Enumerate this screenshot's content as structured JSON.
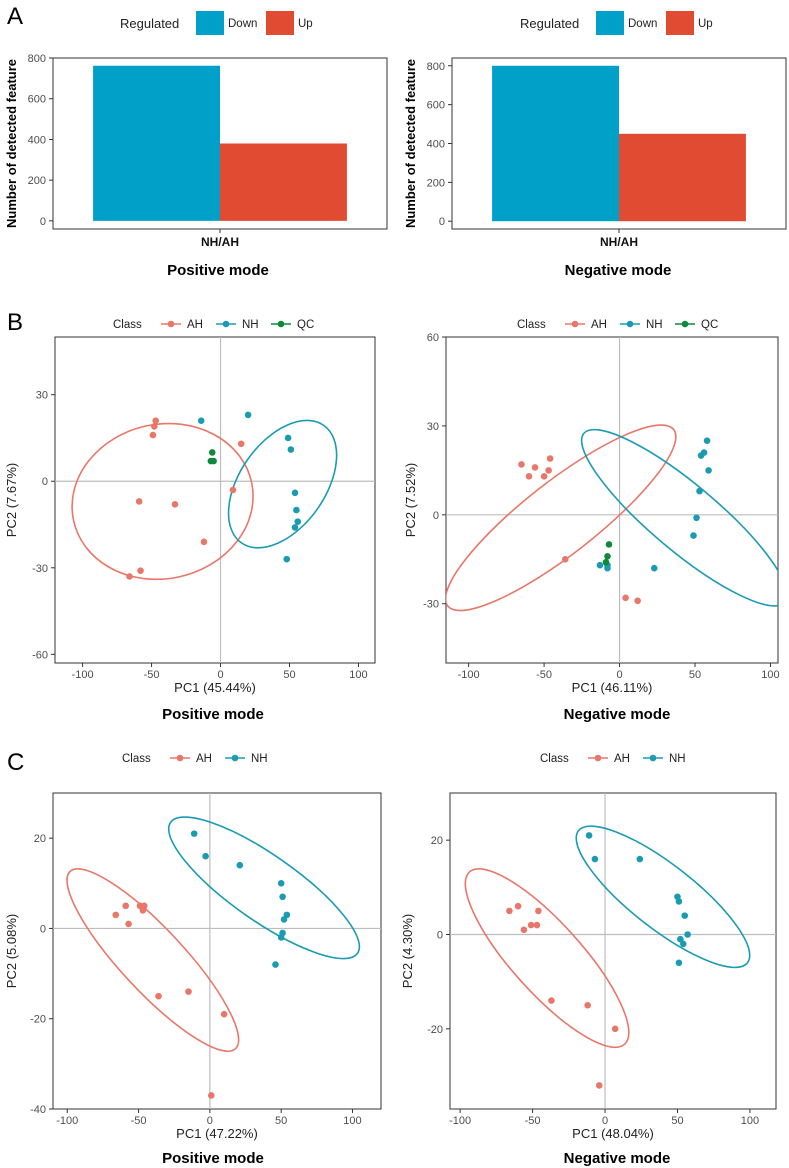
{
  "colors": {
    "down": "#00A0C8",
    "up": "#E04B32",
    "ah": "#E8776A",
    "nh": "#1A9BB2",
    "qc": "#0E8A3A"
  },
  "panel_labels": [
    "A",
    "B",
    "C"
  ],
  "chart_data": [
    {
      "id": "A1",
      "type": "bar",
      "panel": "A",
      "subtitle": "Positive mode",
      "legend_title": "Regulated",
      "categories": [
        "NH/AH"
      ],
      "series": [
        {
          "name": "Down",
          "values": [
            762
          ]
        },
        {
          "name": "Up",
          "values": [
            380
          ]
        }
      ],
      "xlabel": "NH/AH",
      "ylabel": "Number of detected feature",
      "ylim": [
        -40,
        800
      ],
      "yticks": [
        0,
        200,
        400,
        600,
        800
      ],
      "grid": false
    },
    {
      "id": "A2",
      "type": "bar",
      "panel": "A",
      "subtitle": "Negative mode",
      "legend_title": "Regulated",
      "categories": [
        "NH/AH"
      ],
      "series": [
        {
          "name": "Down",
          "values": [
            800
          ]
        },
        {
          "name": "Up",
          "values": [
            450
          ]
        }
      ],
      "xlabel": "NH/AH",
      "ylabel": "Number of detected feature",
      "ylim": [
        -40,
        840
      ],
      "yticks": [
        0,
        200,
        400,
        600,
        800
      ],
      "grid": false
    },
    {
      "id": "B1",
      "type": "scatter",
      "panel": "B",
      "subtitle": "Positive mode",
      "legend_title": "Class",
      "xlabel": "PC1 (45.44%)",
      "ylabel": "PC2 (7.67%)",
      "xlim": [
        -120,
        112
      ],
      "ylim": [
        -63,
        50
      ],
      "xticks": [
        -100,
        -50,
        0,
        50,
        100
      ],
      "yticks": [
        -60,
        -30,
        0,
        30
      ],
      "series": [
        {
          "name": "AH",
          "points": [
            [
              -47,
              21
            ],
            [
              -48,
              19
            ],
            [
              -49,
              16
            ],
            [
              -59,
              -7
            ],
            [
              -33,
              -8
            ],
            [
              -12,
              -21
            ],
            [
              -58,
              -31
            ],
            [
              -66,
              -33
            ],
            [
              9,
              -3
            ],
            [
              15,
              13
            ]
          ]
        },
        {
          "name": "NH",
          "points": [
            [
              -14,
              21
            ],
            [
              20,
              23
            ],
            [
              49,
              15
            ],
            [
              51,
              11
            ],
            [
              54,
              -4
            ],
            [
              55,
              -10
            ],
            [
              54,
              -16
            ],
            [
              56,
              -14
            ],
            [
              48,
              -27
            ]
          ]
        },
        {
          "name": "QC",
          "points": [
            [
              -6,
              10
            ],
            [
              -7,
              7
            ],
            [
              -5,
              7
            ]
          ]
        }
      ],
      "ellipses": [
        {
          "name": "AH",
          "center": [
            -42,
            -7
          ],
          "rx": 66,
          "ry": 56,
          "rotation": -12
        },
        {
          "name": "NH",
          "center": [
            45,
            -1
          ],
          "rx": 52,
          "ry": 31,
          "rotation": -55
        }
      ]
    },
    {
      "id": "B2",
      "type": "scatter",
      "panel": "B",
      "subtitle": "Negative mode",
      "legend_title": "Class",
      "xlabel": "PC1 (46.11%)",
      "ylabel": "PC2 (7.52%)",
      "xlim": [
        -115,
        105
      ],
      "ylim": [
        -50,
        60
      ],
      "xticks": [
        -100,
        -50,
        0,
        50,
        100
      ],
      "yticks": [
        -30,
        0,
        30,
        60
      ],
      "series": [
        {
          "name": "AH",
          "points": [
            [
              -65,
              17
            ],
            [
              -56,
              16
            ],
            [
              -46,
              19
            ],
            [
              -47,
              15
            ],
            [
              -60,
              13
            ],
            [
              -50,
              13
            ],
            [
              -36,
              -15
            ],
            [
              4,
              -28
            ],
            [
              12,
              -29
            ]
          ]
        },
        {
          "name": "NH",
          "points": [
            [
              58,
              25
            ],
            [
              56,
              21
            ],
            [
              54,
              20
            ],
            [
              59,
              15
            ],
            [
              53,
              8
            ],
            [
              51,
              -1
            ],
            [
              49,
              -7
            ],
            [
              23,
              -18
            ],
            [
              -13,
              -17
            ],
            [
              -8,
              -17
            ],
            [
              -8,
              -18
            ]
          ]
        },
        {
          "name": "QC",
          "points": [
            [
              -7,
              -10
            ],
            [
              -8,
              -14
            ],
            [
              -9,
              -16
            ]
          ]
        }
      ],
      "ellipses": [
        {
          "name": "AH",
          "center": [
            -39,
            -1
          ],
          "rx": 95,
          "ry": 24,
          "rotation": -38
        },
        {
          "name": "NH",
          "center": [
            43,
            -1
          ],
          "rx": 87,
          "ry": 22,
          "rotation": 40
        }
      ]
    },
    {
      "id": "C1",
      "type": "scatter",
      "panel": "C",
      "subtitle": "Positive mode",
      "legend_title": "Class",
      "xlabel": "PC1 (47.22%)",
      "ylabel": "PC2 (5.08%)",
      "xlim": [
        -110,
        120
      ],
      "ylim": [
        -40,
        30
      ],
      "xticks": [
        -100,
        -50,
        0,
        50,
        100
      ],
      "yticks": [
        -40,
        -20,
        0,
        20
      ],
      "series": [
        {
          "name": "AH",
          "points": [
            [
              -59,
              5
            ],
            [
              -66,
              3
            ],
            [
              -49,
              5
            ],
            [
              -47,
              4
            ],
            [
              -46,
              5
            ],
            [
              -57,
              1
            ],
            [
              -36,
              -15
            ],
            [
              -15,
              -14
            ],
            [
              10,
              -19
            ],
            [
              1,
              -37
            ]
          ]
        },
        {
          "name": "NH",
          "points": [
            [
              -11,
              21
            ],
            [
              -3,
              16
            ],
            [
              21,
              14
            ],
            [
              50,
              10
            ],
            [
              51,
              7
            ],
            [
              54,
              3
            ],
            [
              52,
              2
            ],
            [
              51,
              -1
            ],
            [
              50,
              -2
            ],
            [
              46,
              -8
            ]
          ]
        }
      ],
      "ellipses": [
        {
          "name": "AH",
          "center": [
            -40,
            -7
          ],
          "rx": 85,
          "ry": 22,
          "rotation": 47
        },
        {
          "name": "NH",
          "center": [
            38,
            9
          ],
          "rx": 80,
          "ry": 23,
          "rotation": 35
        }
      ]
    },
    {
      "id": "C2",
      "type": "scatter",
      "panel": "C",
      "subtitle": "Negative mode",
      "legend_title": "Class",
      "xlabel": "PC1 (48.04%)",
      "ylabel": "PC2 (4.30%)",
      "xlim": [
        -107,
        118
      ],
      "ylim": [
        -37,
        30
      ],
      "xticks": [
        -100,
        -50,
        0,
        50,
        100
      ],
      "yticks": [
        -20,
        0,
        20
      ],
      "series": [
        {
          "name": "AH",
          "points": [
            [
              -60,
              6
            ],
            [
              -66,
              5
            ],
            [
              -46,
              5
            ],
            [
              -51,
              2
            ],
            [
              -47,
              2
            ],
            [
              -56,
              1
            ],
            [
              -37,
              -14
            ],
            [
              -12,
              -15
            ],
            [
              7,
              -20
            ],
            [
              -4,
              -32
            ]
          ]
        },
        {
          "name": "NH",
          "points": [
            [
              -11,
              21
            ],
            [
              -7,
              16
            ],
            [
              24,
              16
            ],
            [
              50,
              8
            ],
            [
              51,
              7
            ],
            [
              55,
              4
            ],
            [
              57,
              0
            ],
            [
              52,
              -1
            ],
            [
              54,
              -2
            ],
            [
              51,
              -6
            ]
          ]
        }
      ],
      "ellipses": [
        {
          "name": "AH",
          "center": [
            -40,
            -5
          ],
          "rx": 80,
          "ry": 24,
          "rotation": 48
        },
        {
          "name": "NH",
          "center": [
            40,
            8
          ],
          "rx": 74,
          "ry": 22,
          "rotation": 38
        }
      ]
    }
  ]
}
